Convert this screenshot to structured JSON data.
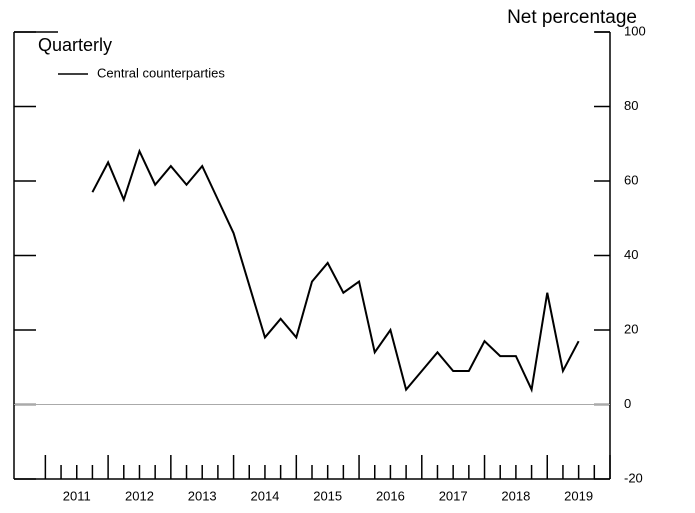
{
  "chart_data": {
    "type": "line",
    "y_axis_label": "Net percentage",
    "subtitle": "Quarterly",
    "x": [
      2011.75,
      2012.0,
      2012.25,
      2012.5,
      2012.75,
      2013.0,
      2013.25,
      2013.5,
      2013.75,
      2014.0,
      2014.25,
      2014.5,
      2014.75,
      2015.0,
      2015.25,
      2015.5,
      2015.75,
      2016.0,
      2016.25,
      2016.5,
      2016.75,
      2017.0,
      2017.25,
      2017.5,
      2017.75,
      2018.0,
      2018.25,
      2018.5,
      2018.75,
      2019.0,
      2019.25,
      2019.5
    ],
    "series": [
      {
        "name": "Central counterparties",
        "color": "#000000",
        "values": [
          57,
          65,
          55,
          68,
          59,
          64,
          59,
          64,
          55,
          46,
          32,
          18,
          23,
          18,
          33,
          38,
          30,
          33,
          14,
          20,
          4,
          9,
          14,
          9,
          9,
          17,
          13,
          13,
          4,
          30,
          9,
          17
        ]
      }
    ],
    "xlim": [
      2010.5,
      2020
    ],
    "xticks": [
      {
        "value": 2011.5,
        "label": "2011"
      },
      {
        "value": 2012.5,
        "label": "2012"
      },
      {
        "value": 2013.5,
        "label": "2013"
      },
      {
        "value": 2014.5,
        "label": "2014"
      },
      {
        "value": 2015.5,
        "label": "2015"
      },
      {
        "value": 2016.5,
        "label": "2016"
      },
      {
        "value": 2017.5,
        "label": "2017"
      },
      {
        "value": 2018.5,
        "label": "2018"
      },
      {
        "value": 2019.5,
        "label": "2019"
      }
    ],
    "ylim": [
      -20,
      100
    ],
    "yticks": [
      -20,
      0,
      20,
      40,
      60,
      80,
      100
    ],
    "zero_line": true
  }
}
